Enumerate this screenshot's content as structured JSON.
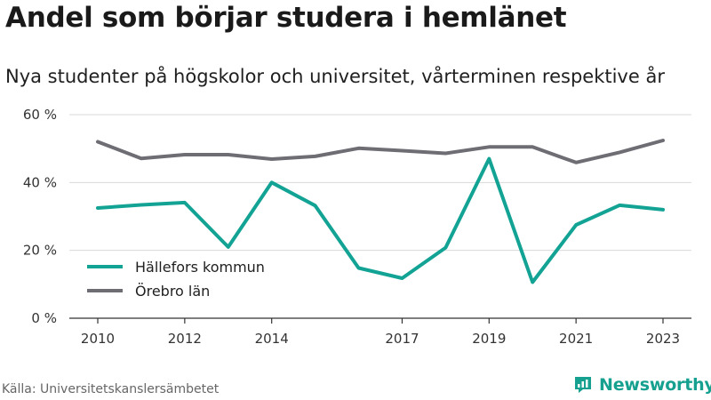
{
  "header": {
    "title": "Andel som börjar studera i hemlänet",
    "subtitle": "Nya studenter på högskolor och universitet, vårterminen respektive år"
  },
  "footer": {
    "source": "Källa: Universitetskanslersämbetet",
    "brand": "Newsworthy"
  },
  "colors": {
    "hallefors": "#13a395",
    "orebro": "#6f6d74",
    "grid": "#d9d9d9",
    "axis": "#333333",
    "brand": "#15a08f"
  },
  "chart_data": {
    "type": "line",
    "x": [
      2010,
      2011,
      2012,
      2013,
      2014,
      2015,
      2016,
      2017,
      2018,
      2019,
      2020,
      2021,
      2022,
      2023
    ],
    "x_tick_labels": [
      "2010",
      "2012",
      "2014",
      "2017",
      "2019",
      "2021",
      "2023"
    ],
    "x_tick_values": [
      2010,
      2012,
      2014,
      2017,
      2019,
      2021,
      2023
    ],
    "y_tick_labels": [
      "0 %",
      "20 %",
      "40 %",
      "60 %"
    ],
    "y_tick_values": [
      0,
      20,
      40,
      60
    ],
    "ylim": [
      0,
      60
    ],
    "grid": true,
    "legend_position": "lower-left",
    "series": [
      {
        "name": "Hällefors kommun",
        "color": "#13a395",
        "values": [
          32.5,
          33.4,
          34.1,
          21.0,
          40.0,
          33.2,
          14.8,
          11.8,
          20.8,
          47.0,
          10.6,
          27.5,
          33.3,
          32.0
        ]
      },
      {
        "name": "Örebro län",
        "color": "#6f6d74",
        "values": [
          52.0,
          47.1,
          48.2,
          48.2,
          46.9,
          47.7,
          50.1,
          49.4,
          48.6,
          50.5,
          50.5,
          45.9,
          48.9,
          52.4
        ]
      }
    ]
  }
}
